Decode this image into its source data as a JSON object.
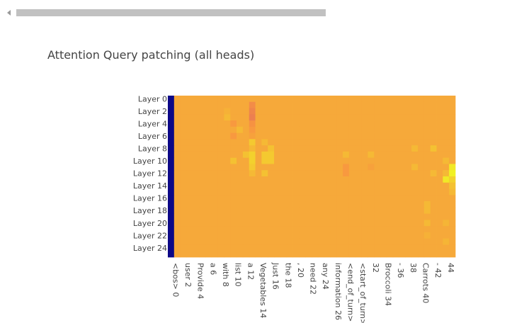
{
  "page": {
    "title": "Attention Query patching (all heads)"
  },
  "colors": {
    "background": "#ffffff",
    "scrollbar_track": "#c1c1c1",
    "scrollbar_arrow": "#9a9a9a",
    "text": "#444444",
    "colorscale": [
      "#0d0887",
      "#7e03a8",
      "#cc4778",
      "#f89540",
      "#f0f921"
    ]
  },
  "chart_data": {
    "type": "heatmap",
    "title": "Attention Query patching (all heads)",
    "xlabel": "",
    "ylabel": "",
    "colorscale": "plasma",
    "zrange": [
      0,
      1
    ],
    "legend": "none",
    "grid": false,
    "x_tick_labels": [
      "<bos> 0",
      "user 2",
      "Provide 4",
      "a 6",
      "with 8",
      "list 10",
      "a 12",
      "Vegetables 14",
      "Just 16",
      "the 18",
      ", 20",
      "need 22",
      "any 24",
      "information 26",
      "<end_of_turn>",
      "<start_of_turn>",
      "32",
      "Broccoli 34",
      "- 36",
      "38",
      "Carrots 40",
      "- 42",
      "44"
    ],
    "y_tick_labels": [
      "Layer 0",
      "Layer 2",
      "Layer 4",
      "Layer 6",
      "Layer 8",
      "Layer 10",
      "Layer 12",
      "Layer 14",
      "Layer 16",
      "Layer 18",
      "Layer 20",
      "Layer 22",
      "Layer 24"
    ],
    "n_rows": 26,
    "n_cols": 46,
    "base_value": 0.8,
    "first_column_value": 0.0,
    "notable_cells": [
      {
        "row": 1,
        "col": 13,
        "value": 0.72
      },
      {
        "row": 2,
        "col": 9,
        "value": 0.82
      },
      {
        "row": 2,
        "col": 13,
        "value": 0.7
      },
      {
        "row": 3,
        "col": 9,
        "value": 0.84
      },
      {
        "row": 3,
        "col": 13,
        "value": 0.68
      },
      {
        "row": 4,
        "col": 13,
        "value": 0.74
      },
      {
        "row": 4,
        "col": 10,
        "value": 0.76
      },
      {
        "row": 5,
        "col": 11,
        "value": 0.84
      },
      {
        "row": 5,
        "col": 13,
        "value": 0.76
      },
      {
        "row": 6,
        "col": 10,
        "value": 0.76
      },
      {
        "row": 6,
        "col": 13,
        "value": 0.78
      },
      {
        "row": 7,
        "col": 13,
        "value": 0.88
      },
      {
        "row": 7,
        "col": 15,
        "value": 0.84
      },
      {
        "row": 8,
        "col": 13,
        "value": 0.84
      },
      {
        "row": 8,
        "col": 16,
        "value": 0.86
      },
      {
        "row": 9,
        "col": 12,
        "value": 0.86
      },
      {
        "row": 9,
        "col": 13,
        "value": 0.9
      },
      {
        "row": 9,
        "col": 15,
        "value": 0.88
      },
      {
        "row": 9,
        "col": 16,
        "value": 0.88
      },
      {
        "row": 10,
        "col": 10,
        "value": 0.86
      },
      {
        "row": 10,
        "col": 13,
        "value": 0.9
      },
      {
        "row": 10,
        "col": 15,
        "value": 0.88
      },
      {
        "row": 10,
        "col": 16,
        "value": 0.88
      },
      {
        "row": 9,
        "col": 28,
        "value": 0.84
      },
      {
        "row": 9,
        "col": 32,
        "value": 0.84
      },
      {
        "row": 8,
        "col": 39,
        "value": 0.84
      },
      {
        "row": 8,
        "col": 42,
        "value": 0.86
      },
      {
        "row": 10,
        "col": 44,
        "value": 0.84
      },
      {
        "row": 11,
        "col": 28,
        "value": 0.76
      },
      {
        "row": 12,
        "col": 28,
        "value": 0.76
      },
      {
        "row": 11,
        "col": 32,
        "value": 0.78
      },
      {
        "row": 11,
        "col": 13,
        "value": 0.88
      },
      {
        "row": 12,
        "col": 13,
        "value": 0.84
      },
      {
        "row": 12,
        "col": 15,
        "value": 0.86
      },
      {
        "row": 11,
        "col": 45,
        "value": 0.96
      },
      {
        "row": 12,
        "col": 45,
        "value": 0.98
      },
      {
        "row": 13,
        "col": 44,
        "value": 0.96
      },
      {
        "row": 13,
        "col": 45,
        "value": 0.9
      },
      {
        "row": 12,
        "col": 44,
        "value": 0.84
      },
      {
        "row": 14,
        "col": 45,
        "value": 0.86
      },
      {
        "row": 15,
        "col": 45,
        "value": 0.84
      },
      {
        "row": 12,
        "col": 42,
        "value": 0.84
      },
      {
        "row": 11,
        "col": 39,
        "value": 0.84
      },
      {
        "row": 17,
        "col": 41,
        "value": 0.84
      },
      {
        "row": 18,
        "col": 41,
        "value": 0.84
      },
      {
        "row": 20,
        "col": 41,
        "value": 0.84
      },
      {
        "row": 20,
        "col": 44,
        "value": 0.83
      },
      {
        "row": 22,
        "col": 41,
        "value": 0.82
      },
      {
        "row": 23,
        "col": 44,
        "value": 0.83
      }
    ]
  }
}
